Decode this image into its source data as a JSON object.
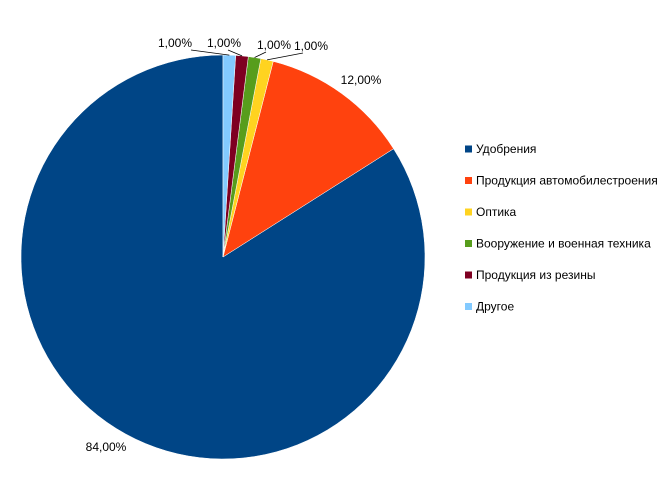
{
  "chart_data": {
    "type": "pie",
    "title": "",
    "series": [
      {
        "values": [
          84,
          12,
          1,
          1,
          1,
          1
        ],
        "labels": [
          "84,00%",
          "12,00%",
          "1,00%",
          "1,00%",
          "1,00%",
          "1,00%"
        ]
      }
    ],
    "categories": [
      "Удобрения",
      "Продукция автомобилестроения",
      "Оптика",
      "Вооружение и военная техника",
      "Продукция из резины",
      "Другое"
    ],
    "colors": [
      "#004586",
      "#ff420e",
      "#ffd320",
      "#579d1c",
      "#7e0021",
      "#83caff"
    ],
    "legend": "right",
    "start_angle": "top",
    "direction": "counterclockwise"
  }
}
